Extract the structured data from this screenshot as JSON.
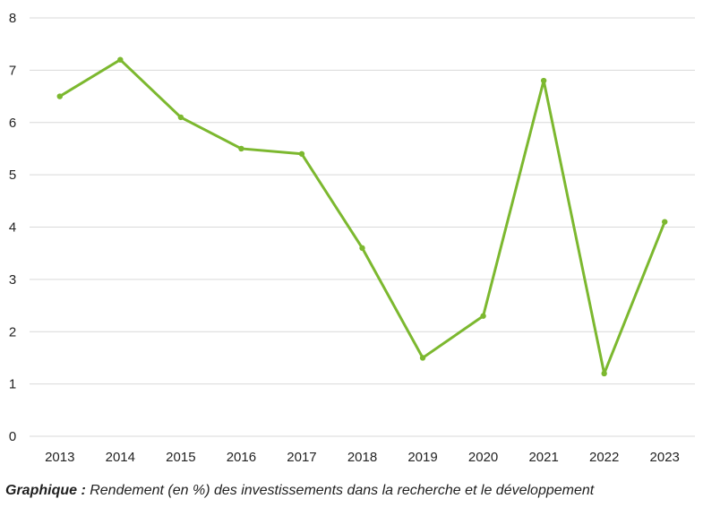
{
  "caption": {
    "lead": "Graphique :",
    "text": " Rendement (en %) des investissements dans la recherche et le développement"
  },
  "chart_data": {
    "type": "line",
    "x": [
      "2013",
      "2014",
      "2015",
      "2016",
      "2017",
      "2018",
      "2019",
      "2020",
      "2021",
      "2022",
      "2023"
    ],
    "series": [
      {
        "values": [
          6.5,
          7.2,
          6.1,
          5.5,
          5.4,
          3.6,
          1.5,
          2.3,
          6.8,
          1.2,
          4.1
        ],
        "color": "#7cb82f"
      }
    ],
    "ylim": [
      0,
      8
    ],
    "yticks": [
      "0",
      "1",
      "2",
      "3",
      "4",
      "5",
      "6",
      "7",
      "8"
    ],
    "grid": true,
    "gridColor": "#d9d9d9",
    "legend": "none",
    "title": "",
    "xlabel": "",
    "ylabel": ""
  }
}
